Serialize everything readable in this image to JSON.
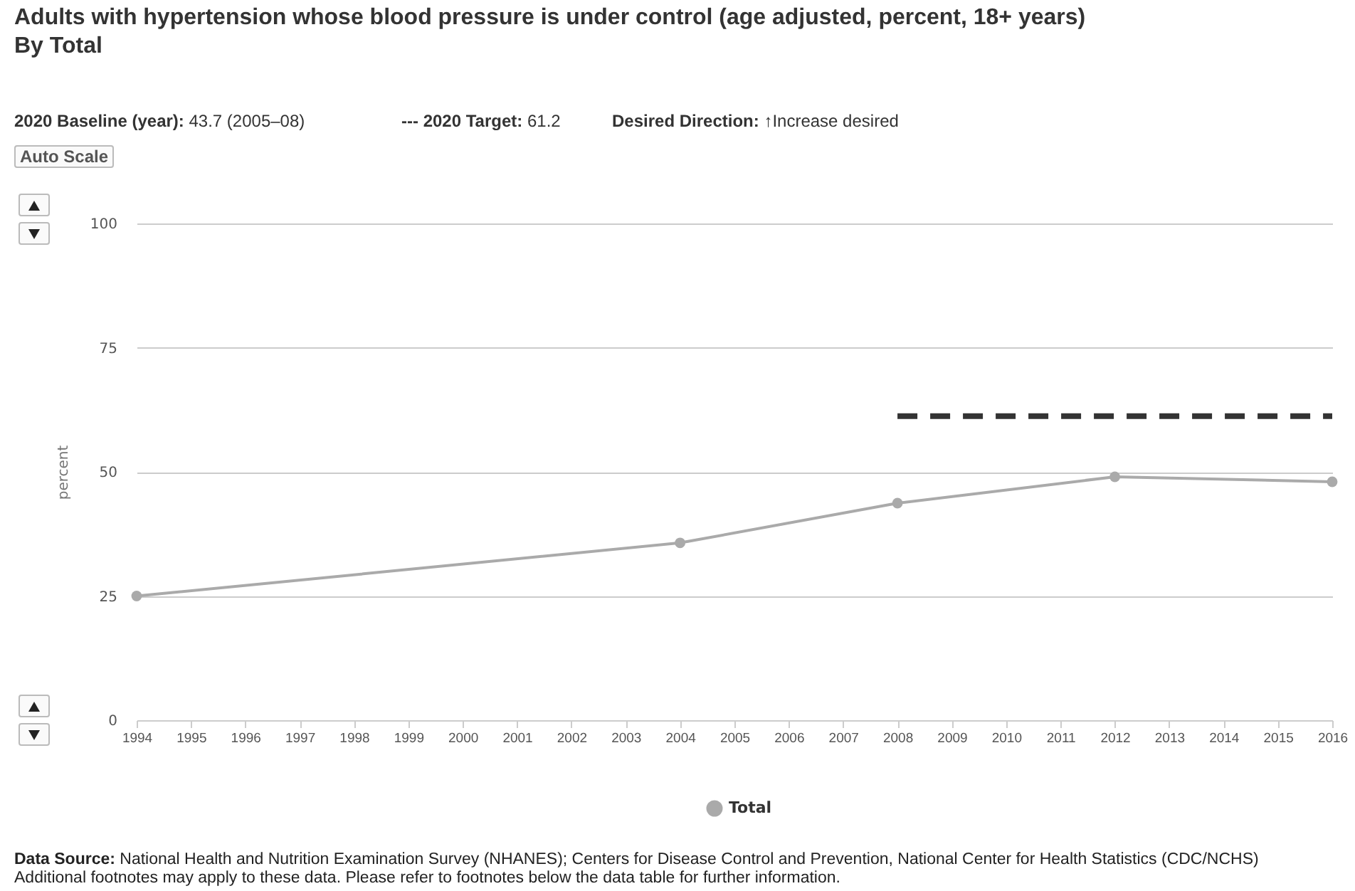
{
  "chart_data": {
    "type": "line",
    "title": "Adults with hypertension whose blood pressure is under control (age adjusted, percent, 18+ years)",
    "subtitle": "By Total",
    "ylabel": "percent",
    "annotations": [
      "2020 Baseline (year): 43.7 (2005–08)",
      "--- 2020 Target: 61.2",
      "Desired Direction: ↑Increase desired",
      "Auto Scale",
      "Data Source: National Health and Nutrition Examination Survey (NHANES); Centers for Disease Control and Prevention, National Center for Health Statistics (CDC/NCHS)",
      "Additional footnotes may apply to these data. Please refer to footnotes below the data table for further information."
    ],
    "x": [
      1994,
      2004,
      2008,
      2012,
      2016
    ],
    "series": [
      {
        "name": "Total",
        "color": "#aaaaaa",
        "values": [
          25,
          35.7,
          43.7,
          49,
          48
        ],
        "marker": "circle",
        "line_style": "solid"
      },
      {
        "color": "#333333",
        "x": [
          2008,
          2016
        ],
        "values": [
          61.2,
          61.2
        ],
        "marker": "none",
        "line_style": "dashed"
      }
    ],
    "xlim": [
      1994,
      2016
    ],
    "xticks": [
      1994,
      1995,
      1996,
      1997,
      1998,
      1999,
      2000,
      2001,
      2002,
      2003,
      2004,
      2005,
      2006,
      2007,
      2008,
      2009,
      2010,
      2011,
      2012,
      2013,
      2014,
      2015,
      2016
    ],
    "ylim": [
      0,
      100
    ],
    "yticks": [
      0,
      25,
      50,
      75,
      100
    ],
    "grid": "y",
    "legend": "bottom"
  }
}
